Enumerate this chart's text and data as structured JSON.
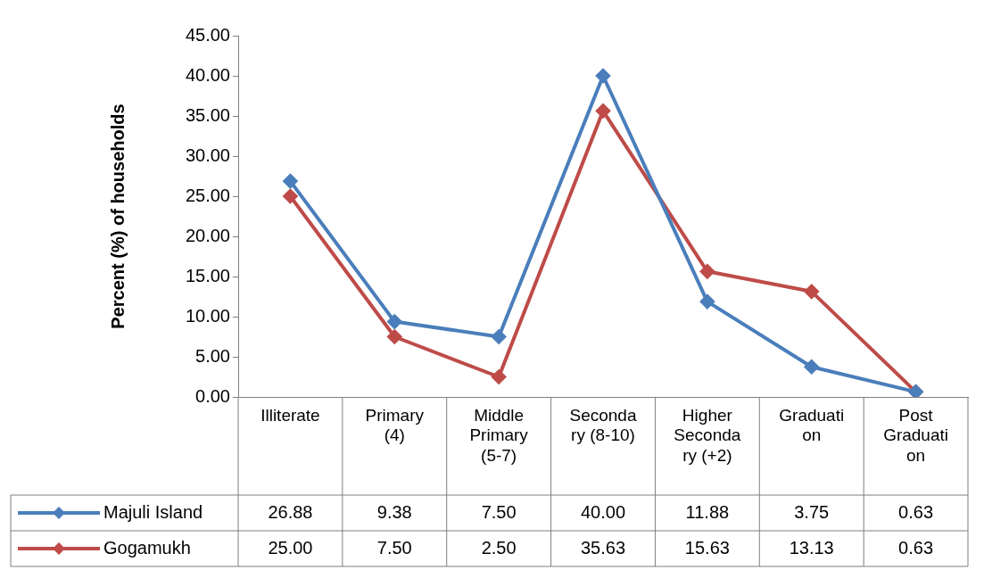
{
  "chart_data": {
    "type": "line",
    "ylabel": "Percent (%) of households",
    "categories": [
      "Illiterate",
      "Primary (4)",
      "Middle Primary (5-7)",
      "Secondary (8-10)",
      "Higher Secondary (+2)",
      "Graduation",
      "Post Graduation"
    ],
    "series": [
      {
        "name": "Majuli Island",
        "color": "#4a7ebb",
        "values": [
          26.88,
          9.38,
          7.5,
          40.0,
          11.88,
          3.75,
          0.63
        ],
        "value_labels": [
          "26.88",
          "9.38",
          "7.50",
          "40.00",
          "11.88",
          "3.75",
          "0.63"
        ]
      },
      {
        "name": "Gogamukh",
        "color": "#be4b48",
        "values": [
          25.0,
          7.5,
          2.5,
          35.63,
          15.63,
          13.13,
          0.63
        ],
        "value_labels": [
          "25.00",
          "7.50",
          "2.50",
          "35.63",
          "15.63",
          "13.13",
          "0.63"
        ]
      }
    ],
    "ylim": [
      0,
      45
    ],
    "yticks": [
      {
        "value": 0,
        "label": "0.00"
      },
      {
        "value": 5,
        "label": "5.00"
      },
      {
        "value": 10,
        "label": "10.00"
      },
      {
        "value": 15,
        "label": "15.00"
      },
      {
        "value": 20,
        "label": "20.00"
      },
      {
        "value": 25,
        "label": "25.00"
      },
      {
        "value": 30,
        "label": "30.00"
      },
      {
        "value": 35,
        "label": "35.00"
      },
      {
        "value": 40,
        "label": "40.00"
      },
      {
        "value": 45,
        "label": "45.00"
      }
    ],
    "grid": false,
    "legend": "bottom",
    "marker": "diamond",
    "line_style": "solid"
  }
}
